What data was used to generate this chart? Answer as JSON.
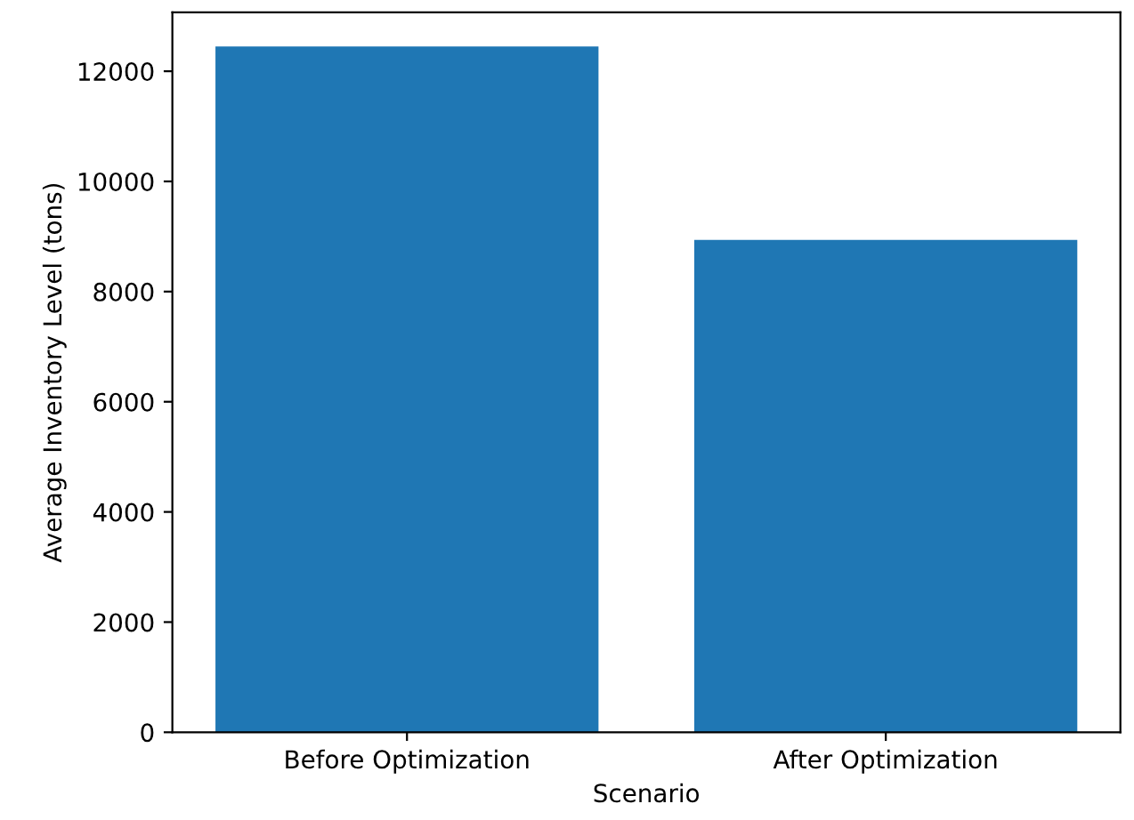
{
  "chart_data": {
    "type": "bar",
    "xlabel": "Scenario",
    "ylabel": "Average Inventory Level (tons)",
    "categories": [
      "Before Optimization",
      "After Optimization"
    ],
    "values": [
      12450,
      8940
    ],
    "color": "#1f77b4",
    "ylim": [
      0,
      13070
    ],
    "yticks": [
      0,
      2000,
      4000,
      6000,
      8000,
      10000,
      12000
    ],
    "grid": false
  }
}
